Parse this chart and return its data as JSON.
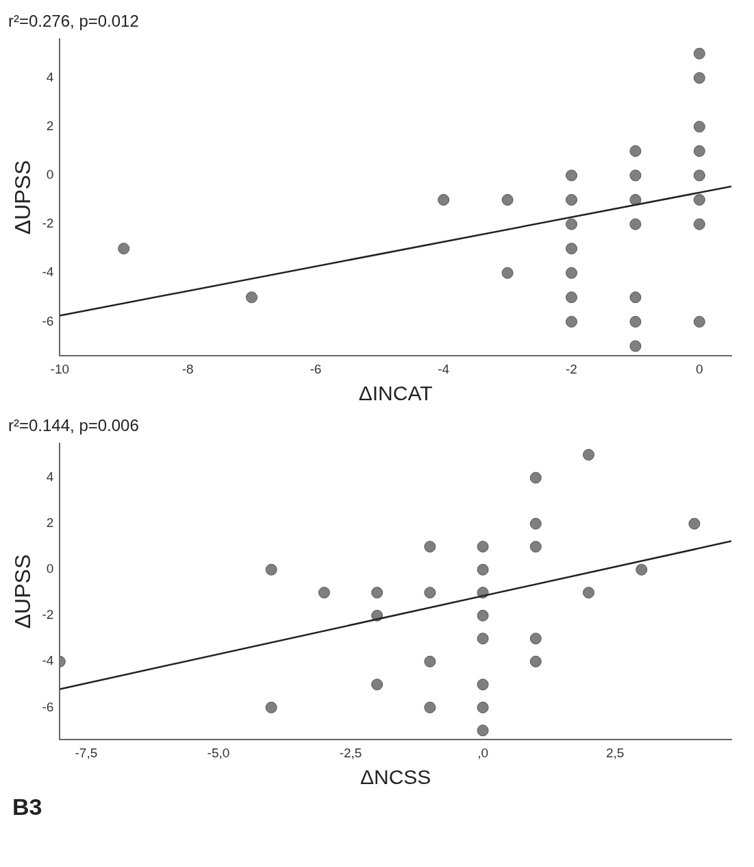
{
  "chart_data": [
    {
      "type": "scatter",
      "title": "r²=0.276, p=0.012",
      "xlabel": "ΔINCAT",
      "ylabel": "ΔUPSS",
      "xlim": [
        -10,
        0.5
      ],
      "ylim": [
        -7.4,
        5.6
      ],
      "xticks": [
        -10,
        -8,
        -6,
        -4,
        -2,
        0
      ],
      "yticks": [
        -6,
        -4,
        -2,
        0,
        2,
        4
      ],
      "grid": false,
      "legend": false,
      "series": [
        {
          "marker": "circle",
          "color": "#7f7f7f",
          "x": [
            -9,
            -7,
            -4,
            -3,
            -3,
            -2,
            -2,
            -2,
            -2,
            -2,
            -2,
            -2,
            -1,
            -1,
            -1,
            -1,
            -1,
            -1,
            -1,
            0,
            0,
            0,
            0,
            0,
            0,
            0,
            0
          ],
          "values": [
            -3,
            -5,
            -1,
            -1,
            -4,
            0,
            -1,
            -2,
            -3,
            -4,
            -5,
            -6,
            1,
            0,
            -1,
            -2,
            -5,
            -6,
            -7,
            5,
            4,
            2,
            1,
            0,
            -1,
            -2,
            -6
          ]
        },
        {
          "type": "line",
          "marker": "none",
          "color": "#222222",
          "x": [
            -10,
            0.5
          ],
          "values": [
            -5.75,
            -0.45
          ]
        }
      ]
    },
    {
      "type": "scatter",
      "title": "r²=0.144, p=0.006",
      "xlabel": "ΔNCSS",
      "ylabel": "ΔUPSS",
      "xlim": [
        -8,
        4.7
      ],
      "ylim": [
        -7.4,
        5.5
      ],
      "xticks": [
        {
          "value": -7.5,
          "label": "-7,5"
        },
        {
          "value": -5,
          "label": "-5,0"
        },
        {
          "value": -2.5,
          "label": "-2,5"
        },
        {
          "value": 0,
          "label": ",0"
        },
        {
          "value": 2.5,
          "label": "2,5"
        }
      ],
      "yticks": [
        -6,
        -4,
        -2,
        0,
        2,
        4
      ],
      "grid": false,
      "legend": false,
      "annotations": [
        "B3"
      ],
      "series": [
        {
          "marker": "circle",
          "color": "#7f7f7f",
          "x": [
            -8,
            -4,
            -4,
            -3,
            -2,
            -2,
            -2,
            -1,
            -1,
            -1,
            -1,
            0,
            0,
            0,
            0,
            0,
            0,
            0,
            0,
            1,
            1,
            1,
            1,
            1,
            2,
            2,
            3,
            4
          ],
          "values": [
            -4,
            0,
            -6,
            -1,
            -1,
            -2,
            -5,
            1,
            -1,
            -4,
            -6,
            1,
            0,
            -1,
            -2,
            -3,
            -5,
            -6,
            -7,
            4,
            2,
            1,
            -3,
            -4,
            5,
            -1,
            0,
            2
          ]
        },
        {
          "type": "line",
          "marker": "none",
          "color": "#222222",
          "x": [
            -8,
            4.7
          ],
          "values": [
            -5.2,
            1.24
          ]
        }
      ]
    }
  ]
}
